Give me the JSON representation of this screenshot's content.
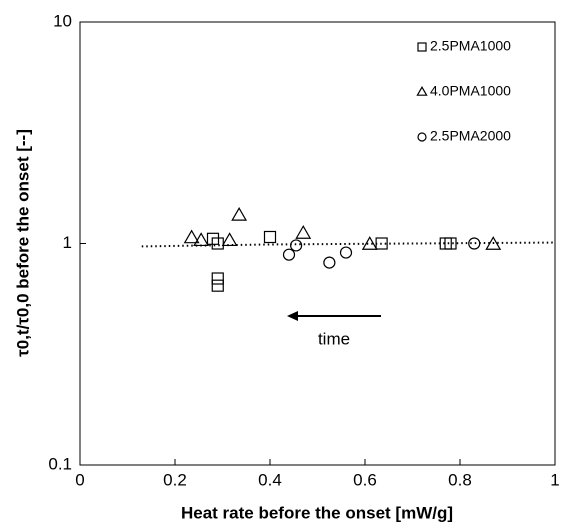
{
  "chart_data": {
    "type": "scatter",
    "xlabel": "Heat rate before the onset [mW/g]",
    "ylabel": "τ0,t/τ0,0 before the onset [--]",
    "xlim": [
      0,
      1
    ],
    "xticks": [
      0,
      0.2,
      0.4,
      0.6,
      0.8,
      1
    ],
    "ylim": [
      0.1,
      10
    ],
    "yticks": [
      0.1,
      1,
      10
    ],
    "ylog": true,
    "legend": "upper right",
    "series": [
      {
        "name": "2.5PMA1000",
        "marker": "square",
        "color": "#000000",
        "x": [
          0.28,
          0.29,
          0.29,
          0.29,
          0.4,
          0.635,
          0.77,
          0.78
        ],
        "values": [
          1.05,
          1.0,
          0.695,
          0.645,
          1.07,
          1.0,
          1.0,
          1.0
        ]
      },
      {
        "name": "4.0PMA1000",
        "marker": "triangle",
        "color": "#000000",
        "x": [
          0.235,
          0.255,
          0.315,
          0.335,
          0.47,
          0.61,
          0.87
        ],
        "values": [
          1.06,
          1.03,
          1.03,
          1.34,
          1.11,
          0.99,
          0.99
        ]
      },
      {
        "name": "2.5PMA2000",
        "marker": "circle",
        "color": "#000000",
        "x": [
          0.44,
          0.455,
          0.525,
          0.56,
          0.83
        ],
        "values": [
          0.89,
          0.98,
          0.82,
          0.91,
          1.0
        ]
      }
    ],
    "trend": {
      "x": [
        0.13,
        0.4,
        0.7,
        1.0
      ],
      "values": [
        0.97,
        0.99,
        1.0,
        1.01
      ]
    },
    "annotation": "time"
  }
}
